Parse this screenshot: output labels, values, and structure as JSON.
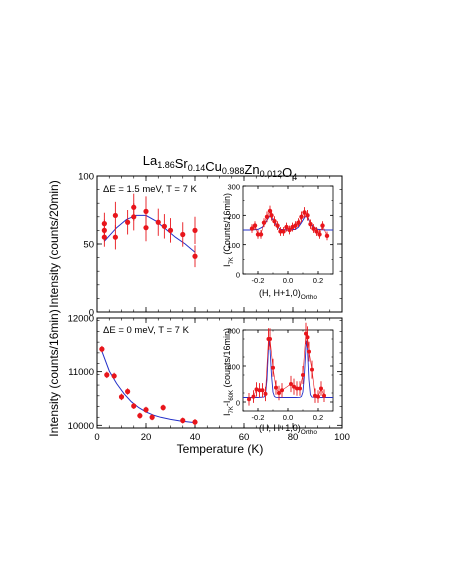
{
  "figure": {
    "title": {
      "base": "La",
      "parts": [
        {
          "t": "La",
          "s": "1.86"
        },
        {
          "t": "Sr",
          "s": "0.14"
        },
        {
          "t": "Cu",
          "s": "0.988"
        },
        {
          "t": "Zn",
          "s": "0.012"
        },
        {
          "t": "O",
          "s": "4"
        }
      ]
    }
  },
  "chart_data": [
    {
      "id": "top-main",
      "type": "scatter",
      "annotation": "ΔE = 1.5 meV, T = 7 K",
      "ylabel": "Intensity (counts/20min)",
      "xlabel": "",
      "xlim": [
        0,
        100
      ],
      "ylim": [
        0,
        100
      ],
      "xticks": [
        0,
        20,
        40,
        60,
        80,
        100
      ],
      "yticks": [
        0,
        50,
        100
      ],
      "show_xtick_labels": false,
      "points": [
        {
          "x": 3,
          "y": 55,
          "err": 7
        },
        {
          "x": 3,
          "y": 60,
          "err": 8
        },
        {
          "x": 3,
          "y": 65,
          "err": 8
        },
        {
          "x": 7.5,
          "y": 71,
          "err": 10
        },
        {
          "x": 7.5,
          "y": 55,
          "err": 9
        },
        {
          "x": 12.5,
          "y": 66,
          "err": 9
        },
        {
          "x": 15,
          "y": 77,
          "err": 10
        },
        {
          "x": 15,
          "y": 70,
          "err": 10
        },
        {
          "x": 20,
          "y": 74,
          "err": 11
        },
        {
          "x": 20,
          "y": 62,
          "err": 10
        },
        {
          "x": 25,
          "y": 66,
          "err": 10
        },
        {
          "x": 27.5,
          "y": 63,
          "err": 9
        },
        {
          "x": 30,
          "y": 60,
          "err": 9
        },
        {
          "x": 35,
          "y": 57,
          "err": 9
        },
        {
          "x": 40,
          "y": 60,
          "err": 10
        },
        {
          "x": 40,
          "y": 41,
          "err": 8
        }
      ],
      "fit": {
        "x": [
          3,
          8,
          12,
          16,
          20,
          24,
          28,
          32,
          36,
          40
        ],
        "y": [
          52,
          62,
          68,
          71,
          71,
          67,
          61,
          55,
          50,
          44
        ]
      },
      "inset": {
        "ylabel": "I7K (Counts/16min)",
        "ylabel_main": "I",
        "ylabel_sub": "7K",
        "ylabel_rest": " (Counts/16min)",
        "xlabel_main": "(H, H+1,0)",
        "xlabel_sub": "Ortho",
        "xlim": [
          -0.3,
          0.3
        ],
        "ylim": [
          0,
          300
        ],
        "xticks": [
          -0.2,
          0,
          0.2
        ],
        "xtick_labels": [
          "-0.2",
          "0.0",
          "0.2"
        ],
        "yticks": [
          0,
          100,
          200,
          300
        ],
        "points": [
          {
            "x": -0.24,
            "y": 155,
            "err": 15
          },
          {
            "x": -0.22,
            "y": 165,
            "err": 15
          },
          {
            "x": -0.2,
            "y": 135,
            "err": 15
          },
          {
            "x": -0.18,
            "y": 135,
            "err": 15
          },
          {
            "x": -0.16,
            "y": 175,
            "err": 15
          },
          {
            "x": -0.14,
            "y": 195,
            "err": 18
          },
          {
            "x": -0.12,
            "y": 215,
            "err": 18
          },
          {
            "x": -0.11,
            "y": 200,
            "err": 18
          },
          {
            "x": -0.09,
            "y": 180,
            "err": 17
          },
          {
            "x": -0.07,
            "y": 165,
            "err": 15
          },
          {
            "x": -0.05,
            "y": 145,
            "err": 15
          },
          {
            "x": -0.03,
            "y": 145,
            "err": 15
          },
          {
            "x": -0.01,
            "y": 160,
            "err": 15
          },
          {
            "x": 0.01,
            "y": 150,
            "err": 15
          },
          {
            "x": 0.03,
            "y": 160,
            "err": 15
          },
          {
            "x": 0.05,
            "y": 165,
            "err": 15
          },
          {
            "x": 0.07,
            "y": 175,
            "err": 15
          },
          {
            "x": 0.09,
            "y": 195,
            "err": 18
          },
          {
            "x": 0.11,
            "y": 210,
            "err": 18
          },
          {
            "x": 0.13,
            "y": 200,
            "err": 18
          },
          {
            "x": 0.15,
            "y": 170,
            "err": 16
          },
          {
            "x": 0.17,
            "y": 155,
            "err": 15
          },
          {
            "x": 0.19,
            "y": 145,
            "err": 15
          },
          {
            "x": 0.21,
            "y": 135,
            "err": 15
          },
          {
            "x": 0.23,
            "y": 165,
            "err": 15
          },
          {
            "x": 0.26,
            "y": 130,
            "err": 15
          }
        ],
        "fit": {
          "x": [
            -0.3,
            -0.25,
            -0.2,
            -0.17,
            -0.15,
            -0.13,
            -0.12,
            -0.11,
            -0.09,
            -0.07,
            -0.05,
            0,
            0.05,
            0.07,
            0.09,
            0.11,
            0.12,
            0.13,
            0.15,
            0.17,
            0.2,
            0.25,
            0.3
          ],
          "y": [
            150,
            150,
            152,
            160,
            175,
            192,
            197,
            192,
            175,
            160,
            152,
            150,
            152,
            160,
            175,
            192,
            197,
            192,
            175,
            160,
            152,
            150,
            150
          ]
        }
      }
    },
    {
      "id": "bottom-main",
      "type": "scatter",
      "annotation": "ΔE = 0 meV, T = 7 K",
      "ylabel": "Intensity (counts/16min)",
      "xlabel": "Temperature (K)",
      "xlim": [
        0,
        100
      ],
      "ylim": [
        9950,
        12000
      ],
      "xticks": [
        0,
        20,
        40,
        60,
        80,
        100
      ],
      "yticks": [
        10000,
        11000,
        12000
      ],
      "show_xtick_labels": true,
      "points": [
        {
          "x": 2,
          "y": 11420,
          "err": 60
        },
        {
          "x": 4,
          "y": 10940,
          "err": 60
        },
        {
          "x": 7,
          "y": 10920,
          "err": 60
        },
        {
          "x": 10,
          "y": 10530,
          "err": 60
        },
        {
          "x": 12.5,
          "y": 10630,
          "err": 60
        },
        {
          "x": 15,
          "y": 10360,
          "err": 55
        },
        {
          "x": 17.5,
          "y": 10180,
          "err": 55
        },
        {
          "x": 20,
          "y": 10290,
          "err": 55
        },
        {
          "x": 22.5,
          "y": 10150,
          "err": 55
        },
        {
          "x": 27,
          "y": 10330,
          "err": 55
        },
        {
          "x": 35,
          "y": 10090,
          "err": 55
        },
        {
          "x": 40,
          "y": 10060,
          "err": 55
        }
      ],
      "fit": {
        "x": [
          2,
          5,
          8,
          11,
          14,
          17,
          20,
          23,
          26,
          30,
          34,
          38,
          40
        ],
        "y": [
          11380,
          11010,
          10780,
          10590,
          10440,
          10330,
          10250,
          10190,
          10150,
          10110,
          10080,
          10060,
          10050
        ]
      },
      "inset": {
        "ylabel_main": "I",
        "ylabel_sub": "7K",
        "ylabel_mid": "-I",
        "ylabel_sub2": "60K",
        "ylabel_rest": " (counts/16min)",
        "xlabel_main": "(H, H+1,0)",
        "xlabel_sub": "Ortho",
        "xlim": [
          -0.3,
          0.3
        ],
        "ylim": [
          -100,
          800
        ],
        "xticks": [
          -0.2,
          0,
          0.2
        ],
        "xtick_labels": [
          "-0.2",
          "0.0",
          "0.2"
        ],
        "yticks": [
          0,
          400,
          800
        ],
        "points": [
          {
            "x": -0.26,
            "y": 30,
            "err": 70
          },
          {
            "x": -0.23,
            "y": 60,
            "err": 70
          },
          {
            "x": -0.21,
            "y": 140,
            "err": 80
          },
          {
            "x": -0.19,
            "y": 130,
            "err": 80
          },
          {
            "x": -0.17,
            "y": 130,
            "err": 80
          },
          {
            "x": -0.15,
            "y": 90,
            "err": 80
          },
          {
            "x": -0.13,
            "y": 700,
            "err": 120
          },
          {
            "x": -0.12,
            "y": 700,
            "err": 120
          },
          {
            "x": -0.1,
            "y": 380,
            "err": 100
          },
          {
            "x": -0.08,
            "y": 160,
            "err": 80
          },
          {
            "x": -0.06,
            "y": 100,
            "err": 80
          },
          {
            "x": -0.04,
            "y": 130,
            "err": 80
          },
          {
            "x": 0.02,
            "y": 200,
            "err": 90
          },
          {
            "x": 0.04,
            "y": 170,
            "err": 90
          },
          {
            "x": 0.06,
            "y": 150,
            "err": 80
          },
          {
            "x": 0.08,
            "y": 150,
            "err": 80
          },
          {
            "x": 0.1,
            "y": 300,
            "err": 100
          },
          {
            "x": 0.12,
            "y": 760,
            "err": 120
          },
          {
            "x": 0.13,
            "y": 720,
            "err": 120
          },
          {
            "x": 0.14,
            "y": 560,
            "err": 110
          },
          {
            "x": 0.16,
            "y": 360,
            "err": 100
          },
          {
            "x": 0.18,
            "y": 70,
            "err": 80
          },
          {
            "x": 0.2,
            "y": 60,
            "err": 70
          },
          {
            "x": 0.22,
            "y": 150,
            "err": 80
          },
          {
            "x": 0.24,
            "y": 70,
            "err": 70
          }
        ],
        "fit": {
          "x": [
            -0.3,
            -0.2,
            -0.16,
            -0.15,
            -0.14,
            -0.13,
            -0.125,
            -0.12,
            -0.11,
            -0.1,
            -0.09,
            -0.08,
            -0.05,
            0,
            0.05,
            0.08,
            0.09,
            0.1,
            0.11,
            0.12,
            0.125,
            0.13,
            0.14,
            0.15,
            0.16,
            0.2,
            0.3
          ],
          "y": [
            50,
            50,
            55,
            80,
            250,
            600,
            680,
            600,
            300,
            110,
            60,
            52,
            50,
            50,
            50,
            52,
            60,
            110,
            300,
            600,
            680,
            600,
            250,
            80,
            55,
            50,
            50
          ]
        }
      }
    }
  ]
}
